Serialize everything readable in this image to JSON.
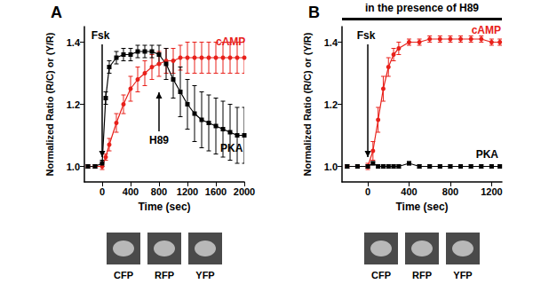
{
  "chart_data": [
    {
      "type": "line",
      "title": "A",
      "xlabel": "Time (sec)",
      "ylabel": "Normalized Ratio (R/C) or (Y/R)",
      "xlim": [
        -250,
        2000
      ],
      "xticks": [
        0,
        400,
        800,
        1200,
        1600,
        2000
      ],
      "ylim": [
        0.95,
        1.45
      ],
      "yticks": [
        {
          "value": 1,
          "label": "1.0"
        },
        1.2,
        1.4
      ],
      "grid": false,
      "x": [
        -200,
        -100,
        0,
        50,
        100,
        200,
        300,
        400,
        500,
        600,
        700,
        800,
        900,
        1000,
        1100,
        1200,
        1300,
        1400,
        1500,
        1600,
        1700,
        1800,
        1900,
        2000
      ],
      "series": [
        {
          "name": "cAMP",
          "color": "#e8201a",
          "marker": "circle",
          "values": [
            1.0,
            1.0,
            1.0,
            1.03,
            1.07,
            1.14,
            1.2,
            1.25,
            1.28,
            1.3,
            1.32,
            1.33,
            1.34,
            1.34,
            1.35,
            1.35,
            1.35,
            1.35,
            1.35,
            1.35,
            1.35,
            1.35,
            1.35,
            1.35
          ],
          "errors": [
            0.005,
            0.005,
            0.01,
            0.01,
            0.02,
            0.03,
            0.03,
            0.04,
            0.04,
            0.04,
            0.04,
            0.04,
            0.04,
            0.04,
            0.04,
            0.05,
            0.05,
            0.05,
            0.05,
            0.05,
            0.05,
            0.05,
            0.05,
            0.05
          ]
        },
        {
          "name": "PKA",
          "color": "#000000",
          "marker": "square",
          "values": [
            1.0,
            1.0,
            1.01,
            1.22,
            1.32,
            1.35,
            1.36,
            1.36,
            1.37,
            1.37,
            1.37,
            1.36,
            1.33,
            1.28,
            1.24,
            1.2,
            1.17,
            1.15,
            1.14,
            1.13,
            1.12,
            1.11,
            1.1,
            1.1
          ],
          "errors": [
            0.005,
            0.005,
            0.01,
            0.02,
            0.02,
            0.02,
            0.02,
            0.02,
            0.02,
            0.02,
            0.02,
            0.03,
            0.05,
            0.06,
            0.08,
            0.08,
            0.09,
            0.09,
            0.09,
            0.09,
            0.09,
            0.09,
            0.09,
            0.09
          ]
        }
      ],
      "annotations": [
        {
          "text": "Fsk",
          "x": 0
        },
        {
          "text": "H89",
          "x": 800
        }
      ],
      "images": [
        "CFP",
        "RFP",
        "YFP"
      ]
    },
    {
      "type": "line",
      "title": "B",
      "subtitle": "in the presence of H89",
      "xlabel": "Time (sec)",
      "ylabel": "Normalized Ratio (R/C) or (Y/R)",
      "xlim": [
        -250,
        1300
      ],
      "xticks": [
        0,
        400,
        800,
        1200
      ],
      "ylim": [
        0.95,
        1.45
      ],
      "yticks": [
        {
          "value": 1,
          "label": "1.0"
        },
        1.2,
        1.4
      ],
      "grid": false,
      "x": [
        -200,
        -100,
        0,
        50,
        100,
        150,
        200,
        250,
        300,
        400,
        500,
        600,
        700,
        800,
        900,
        1000,
        1100,
        1200,
        1280
      ],
      "series": [
        {
          "name": "cAMP",
          "color": "#e8201a",
          "marker": "circle",
          "values": [
            1.0,
            1.0,
            1.0,
            1.05,
            1.15,
            1.25,
            1.32,
            1.36,
            1.38,
            1.4,
            1.4,
            1.41,
            1.41,
            1.41,
            1.41,
            1.41,
            1.41,
            1.4,
            1.4
          ],
          "errors": [
            0.005,
            0.005,
            0.01,
            0.03,
            0.04,
            0.04,
            0.03,
            0.02,
            0.02,
            0.01,
            0.01,
            0.01,
            0.01,
            0.01,
            0.01,
            0.01,
            0.01,
            0.01,
            0.01
          ]
        },
        {
          "name": "PKA",
          "color": "#000000",
          "marker": "square",
          "values": [
            1.0,
            1.0,
            1.0,
            1.01,
            1.0,
            1.0,
            1.0,
            1.0,
            1.0,
            1.01,
            1.0,
            1.0,
            1.0,
            1.0,
            1.0,
            1.0,
            1.0,
            1.0,
            1.0
          ],
          "errors": [
            0.005,
            0.005,
            0.005,
            0.005,
            0.005,
            0.005,
            0.005,
            0.005,
            0.005,
            0.005,
            0.005,
            0.005,
            0.005,
            0.005,
            0.005,
            0.005,
            0.005,
            0.005,
            0.005
          ]
        }
      ],
      "annotations": [
        {
          "text": "Fsk",
          "x": 0
        }
      ],
      "images": [
        "CFP",
        "RFP",
        "YFP"
      ]
    }
  ]
}
